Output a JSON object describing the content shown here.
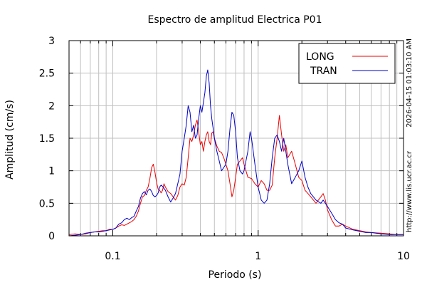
{
  "chart_data": {
    "type": "line",
    "title": "Espectro de amplitud Electrica P01",
    "xlabel": "Periodo (s)",
    "ylabel": "Amplitud (cm/s)",
    "xscale": "log",
    "xlim": [
      0.05,
      10
    ],
    "ylim": [
      0,
      3
    ],
    "x_ticks": [
      {
        "value": 0.1,
        "label": "0.1"
      },
      {
        "value": 1,
        "label": "1"
      },
      {
        "value": 10,
        "label": "10"
      }
    ],
    "y_ticks": [
      {
        "value": 0,
        "label": "0"
      },
      {
        "value": 0.5,
        "label": "0.5"
      },
      {
        "value": 1,
        "label": "1"
      },
      {
        "value": 1.5,
        "label": "1.5"
      },
      {
        "value": 2,
        "label": "2"
      },
      {
        "value": 2.5,
        "label": "2.5"
      },
      {
        "value": 3,
        "label": "3"
      }
    ],
    "grid": true,
    "legend_position": "top-right",
    "series": [
      {
        "name": "LONG",
        "color": "#ee0000",
        "points": [
          [
            0.05,
            0.02
          ],
          [
            0.055,
            0.03
          ],
          [
            0.06,
            0.02
          ],
          [
            0.065,
            0.03
          ],
          [
            0.07,
            0.05
          ],
          [
            0.075,
            0.06
          ],
          [
            0.08,
            0.07
          ],
          [
            0.085,
            0.08
          ],
          [
            0.09,
            0.08
          ],
          [
            0.095,
            0.1
          ],
          [
            0.1,
            0.1
          ],
          [
            0.105,
            0.12
          ],
          [
            0.11,
            0.15
          ],
          [
            0.115,
            0.17
          ],
          [
            0.12,
            0.16
          ],
          [
            0.125,
            0.18
          ],
          [
            0.13,
            0.2
          ],
          [
            0.135,
            0.22
          ],
          [
            0.14,
            0.25
          ],
          [
            0.145,
            0.3
          ],
          [
            0.15,
            0.38
          ],
          [
            0.155,
            0.5
          ],
          [
            0.16,
            0.6
          ],
          [
            0.165,
            0.62
          ],
          [
            0.17,
            0.7
          ],
          [
            0.175,
            0.75
          ],
          [
            0.18,
            0.88
          ],
          [
            0.185,
            1.05
          ],
          [
            0.19,
            1.1
          ],
          [
            0.195,
            0.98
          ],
          [
            0.2,
            0.82
          ],
          [
            0.205,
            0.72
          ],
          [
            0.21,
            0.7
          ],
          [
            0.215,
            0.66
          ],
          [
            0.22,
            0.7
          ],
          [
            0.225,
            0.8
          ],
          [
            0.23,
            0.75
          ],
          [
            0.24,
            0.68
          ],
          [
            0.25,
            0.65
          ],
          [
            0.26,
            0.6
          ],
          [
            0.27,
            0.55
          ],
          [
            0.28,
            0.62
          ],
          [
            0.29,
            0.75
          ],
          [
            0.3,
            0.8
          ],
          [
            0.31,
            0.78
          ],
          [
            0.32,
            0.9
          ],
          [
            0.33,
            1.2
          ],
          [
            0.34,
            1.5
          ],
          [
            0.35,
            1.45
          ],
          [
            0.36,
            1.55
          ],
          [
            0.37,
            1.7
          ],
          [
            0.38,
            1.78
          ],
          [
            0.39,
            1.6
          ],
          [
            0.4,
            1.4
          ],
          [
            0.41,
            1.45
          ],
          [
            0.42,
            1.3
          ],
          [
            0.43,
            1.45
          ],
          [
            0.44,
            1.55
          ],
          [
            0.45,
            1.6
          ],
          [
            0.46,
            1.45
          ],
          [
            0.47,
            1.4
          ],
          [
            0.48,
            1.58
          ],
          [
            0.49,
            1.6
          ],
          [
            0.5,
            1.5
          ],
          [
            0.52,
            1.38
          ],
          [
            0.54,
            1.3
          ],
          [
            0.56,
            1.28
          ],
          [
            0.58,
            1.2
          ],
          [
            0.6,
            1.1
          ],
          [
            0.62,
            1.0
          ],
          [
            0.64,
            0.8
          ],
          [
            0.66,
            0.6
          ],
          [
            0.68,
            0.7
          ],
          [
            0.7,
            0.9
          ],
          [
            0.72,
            1.1
          ],
          [
            0.75,
            1.15
          ],
          [
            0.78,
            1.2
          ],
          [
            0.8,
            1.1
          ],
          [
            0.85,
            0.9
          ],
          [
            0.9,
            0.88
          ],
          [
            0.95,
            0.8
          ],
          [
            1.0,
            0.75
          ],
          [
            1.05,
            0.85
          ],
          [
            1.1,
            0.8
          ],
          [
            1.15,
            0.7
          ],
          [
            1.2,
            0.7
          ],
          [
            1.25,
            0.78
          ],
          [
            1.3,
            1.2
          ],
          [
            1.35,
            1.5
          ],
          [
            1.4,
            1.85
          ],
          [
            1.45,
            1.55
          ],
          [
            1.5,
            1.3
          ],
          [
            1.55,
            1.4
          ],
          [
            1.6,
            1.2
          ],
          [
            1.7,
            1.3
          ],
          [
            1.8,
            1.1
          ],
          [
            1.9,
            0.9
          ],
          [
            2.0,
            0.85
          ],
          [
            2.1,
            0.7
          ],
          [
            2.2,
            0.65
          ],
          [
            2.3,
            0.6
          ],
          [
            2.5,
            0.5
          ],
          [
            2.7,
            0.6
          ],
          [
            2.8,
            0.65
          ],
          [
            2.9,
            0.55
          ],
          [
            3.0,
            0.4
          ],
          [
            3.2,
            0.25
          ],
          [
            3.4,
            0.15
          ],
          [
            3.6,
            0.15
          ],
          [
            3.8,
            0.18
          ],
          [
            4.0,
            0.15
          ],
          [
            4.5,
            0.1
          ],
          [
            5.0,
            0.08
          ],
          [
            5.5,
            0.06
          ],
          [
            6.0,
            0.05
          ],
          [
            7.0,
            0.04
          ],
          [
            8.0,
            0.03
          ],
          [
            9.0,
            0.02
          ],
          [
            10.0,
            0.02
          ]
        ]
      },
      {
        "name": "TRAN",
        "color": "#0000cc",
        "points": [
          [
            0.05,
            0.0
          ],
          [
            0.055,
            0.01
          ],
          [
            0.06,
            0.02
          ],
          [
            0.065,
            0.04
          ],
          [
            0.07,
            0.05
          ],
          [
            0.075,
            0.06
          ],
          [
            0.08,
            0.06
          ],
          [
            0.085,
            0.07
          ],
          [
            0.09,
            0.08
          ],
          [
            0.095,
            0.09
          ],
          [
            0.1,
            0.1
          ],
          [
            0.105,
            0.12
          ],
          [
            0.11,
            0.18
          ],
          [
            0.115,
            0.2
          ],
          [
            0.12,
            0.25
          ],
          [
            0.125,
            0.27
          ],
          [
            0.13,
            0.25
          ],
          [
            0.135,
            0.28
          ],
          [
            0.14,
            0.3
          ],
          [
            0.145,
            0.38
          ],
          [
            0.15,
            0.45
          ],
          [
            0.155,
            0.58
          ],
          [
            0.16,
            0.65
          ],
          [
            0.165,
            0.68
          ],
          [
            0.17,
            0.63
          ],
          [
            0.175,
            0.7
          ],
          [
            0.18,
            0.72
          ],
          [
            0.185,
            0.68
          ],
          [
            0.19,
            0.62
          ],
          [
            0.195,
            0.6
          ],
          [
            0.2,
            0.62
          ],
          [
            0.205,
            0.66
          ],
          [
            0.21,
            0.75
          ],
          [
            0.215,
            0.78
          ],
          [
            0.22,
            0.76
          ],
          [
            0.23,
            0.7
          ],
          [
            0.24,
            0.6
          ],
          [
            0.25,
            0.52
          ],
          [
            0.26,
            0.58
          ],
          [
            0.27,
            0.65
          ],
          [
            0.28,
            0.8
          ],
          [
            0.29,
            0.95
          ],
          [
            0.3,
            1.3
          ],
          [
            0.31,
            1.5
          ],
          [
            0.32,
            1.7
          ],
          [
            0.33,
            2.0
          ],
          [
            0.34,
            1.9
          ],
          [
            0.35,
            1.6
          ],
          [
            0.36,
            1.7
          ],
          [
            0.37,
            1.5
          ],
          [
            0.38,
            1.55
          ],
          [
            0.39,
            1.8
          ],
          [
            0.4,
            2.0
          ],
          [
            0.41,
            1.9
          ],
          [
            0.42,
            2.05
          ],
          [
            0.43,
            2.2
          ],
          [
            0.44,
            2.45
          ],
          [
            0.45,
            2.55
          ],
          [
            0.46,
            2.35
          ],
          [
            0.47,
            2.0
          ],
          [
            0.48,
            1.8
          ],
          [
            0.49,
            1.65
          ],
          [
            0.5,
            1.5
          ],
          [
            0.52,
            1.3
          ],
          [
            0.54,
            1.15
          ],
          [
            0.56,
            1.0
          ],
          [
            0.58,
            1.05
          ],
          [
            0.6,
            1.1
          ],
          [
            0.62,
            1.3
          ],
          [
            0.64,
            1.65
          ],
          [
            0.66,
            1.9
          ],
          [
            0.68,
            1.85
          ],
          [
            0.7,
            1.6
          ],
          [
            0.72,
            1.2
          ],
          [
            0.75,
            1.0
          ],
          [
            0.78,
            0.95
          ],
          [
            0.8,
            1.0
          ],
          [
            0.85,
            1.3
          ],
          [
            0.88,
            1.6
          ],
          [
            0.9,
            1.5
          ],
          [
            0.95,
            1.1
          ],
          [
            1.0,
            0.75
          ],
          [
            1.05,
            0.55
          ],
          [
            1.1,
            0.5
          ],
          [
            1.15,
            0.55
          ],
          [
            1.2,
            0.8
          ],
          [
            1.25,
            1.2
          ],
          [
            1.3,
            1.5
          ],
          [
            1.35,
            1.55
          ],
          [
            1.4,
            1.45
          ],
          [
            1.45,
            1.3
          ],
          [
            1.5,
            1.5
          ],
          [
            1.55,
            1.3
          ],
          [
            1.6,
            1.1
          ],
          [
            1.7,
            0.8
          ],
          [
            1.8,
            0.9
          ],
          [
            1.9,
            1.0
          ],
          [
            2.0,
            1.15
          ],
          [
            2.1,
            0.9
          ],
          [
            2.2,
            0.75
          ],
          [
            2.3,
            0.65
          ],
          [
            2.5,
            0.55
          ],
          [
            2.7,
            0.5
          ],
          [
            2.8,
            0.55
          ],
          [
            2.9,
            0.5
          ],
          [
            3.0,
            0.45
          ],
          [
            3.2,
            0.35
          ],
          [
            3.4,
            0.25
          ],
          [
            3.6,
            0.2
          ],
          [
            3.8,
            0.18
          ],
          [
            4.0,
            0.12
          ],
          [
            4.5,
            0.09
          ],
          [
            5.0,
            0.07
          ],
          [
            5.5,
            0.05
          ],
          [
            6.0,
            0.05
          ],
          [
            7.0,
            0.03
          ],
          [
            8.0,
            0.02
          ],
          [
            9.0,
            0.02
          ],
          [
            10.0,
            0.02
          ]
        ]
      }
    ]
  },
  "side_labels": {
    "timestamp": "2026-04-15 01:03:10 AM",
    "url": "http://www.lis.ucr.ac.cr"
  }
}
